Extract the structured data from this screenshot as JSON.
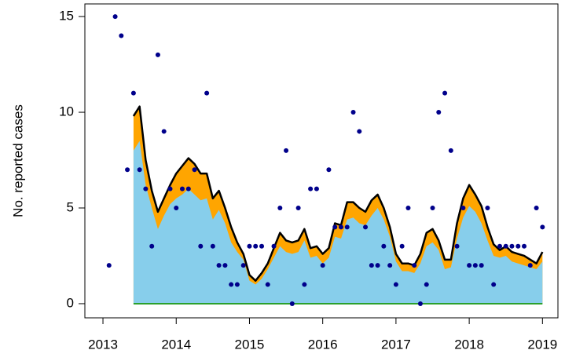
{
  "chart_data": {
    "type": "line",
    "ylabel": "No. reported cases",
    "xlim": [
      2012.753,
      2019.211
    ],
    "ylim": [
      -0.74,
      15.66
    ],
    "xticks": [
      2013,
      2014,
      2015,
      2016,
      2017,
      2018,
      2019
    ],
    "yticks": [
      0,
      5,
      10,
      15
    ],
    "baseline": {
      "value": 0,
      "color": "#2ca02c"
    },
    "series": [
      {
        "type": "area",
        "color": "#ffa500",
        "stroke": "#000000",
        "x": [
          2013.417,
          2013.5,
          2013.583,
          2013.667,
          2013.75,
          2013.833,
          2013.917,
          2014,
          2014.083,
          2014.167,
          2014.25,
          2014.333,
          2014.417,
          2014.5,
          2014.583,
          2014.667,
          2014.75,
          2014.833,
          2014.917,
          2015,
          2015.083,
          2015.167,
          2015.25,
          2015.333,
          2015.417,
          2015.5,
          2015.583,
          2015.667,
          2015.75,
          2015.833,
          2015.917,
          2016,
          2016.083,
          2016.167,
          2016.25,
          2016.333,
          2016.417,
          2016.5,
          2016.583,
          2016.667,
          2016.75,
          2016.833,
          2016.917,
          2017,
          2017.083,
          2017.167,
          2017.25,
          2017.333,
          2017.417,
          2017.5,
          2017.583,
          2017.667,
          2017.75,
          2017.833,
          2017.917,
          2018,
          2018.083,
          2018.167,
          2018.25,
          2018.333,
          2018.417,
          2018.5,
          2018.583,
          2018.667,
          2018.75,
          2018.833,
          2018.917,
          2019
        ],
        "values": [
          9.8,
          10.3,
          7.5,
          5.9,
          4.8,
          5.5,
          6.2,
          6.8,
          7.2,
          7.6,
          7.3,
          6.8,
          6.8,
          5.5,
          5.9,
          5.0,
          4.0,
          3.2,
          2.6,
          1.5,
          1.2,
          1.6,
          2.1,
          2.9,
          3.7,
          3.3,
          3.2,
          3.3,
          3.9,
          2.9,
          3.0,
          2.6,
          2.9,
          4.2,
          4.1,
          5.3,
          5.3,
          5.0,
          4.8,
          5.4,
          5.7,
          5.0,
          4.0,
          2.6,
          2.1,
          2.1,
          2.0,
          2.6,
          3.7,
          3.9,
          3.3,
          2.3,
          2.3,
          4.2,
          5.5,
          6.2,
          5.7,
          5.1,
          4.0,
          3.1,
          2.8,
          3.0,
          2.7,
          2.6,
          2.5,
          2.3,
          2.1,
          2.7
        ]
      },
      {
        "type": "area",
        "color": "#87ceeb",
        "x": [
          2013.417,
          2013.5,
          2013.583,
          2013.667,
          2013.75,
          2013.833,
          2013.917,
          2014,
          2014.083,
          2014.167,
          2014.25,
          2014.333,
          2014.417,
          2014.5,
          2014.583,
          2014.667,
          2014.75,
          2014.833,
          2014.917,
          2015,
          2015.083,
          2015.167,
          2015.25,
          2015.333,
          2015.417,
          2015.5,
          2015.583,
          2015.667,
          2015.75,
          2015.833,
          2015.917,
          2016,
          2016.083,
          2016.167,
          2016.25,
          2016.333,
          2016.417,
          2016.5,
          2016.583,
          2016.667,
          2016.75,
          2016.833,
          2016.917,
          2017,
          2017.083,
          2017.167,
          2017.25,
          2017.333,
          2017.417,
          2017.5,
          2017.583,
          2017.667,
          2017.75,
          2017.833,
          2017.917,
          2018,
          2018.083,
          2018.167,
          2018.25,
          2018.333,
          2018.417,
          2018.5,
          2018.583,
          2018.667,
          2018.75,
          2018.833,
          2018.917,
          2019
        ],
        "values": [
          8.0,
          8.5,
          6.2,
          5.0,
          3.9,
          4.6,
          5.2,
          5.5,
          5.7,
          6.0,
          5.7,
          5.4,
          5.5,
          4.4,
          4.9,
          4.2,
          3.2,
          2.7,
          2.3,
          1.2,
          1.0,
          1.3,
          1.8,
          2.4,
          3.0,
          2.7,
          2.6,
          2.7,
          3.3,
          2.4,
          2.5,
          2.1,
          2.4,
          3.5,
          3.4,
          4.4,
          4.5,
          4.2,
          4.1,
          4.6,
          5.0,
          4.4,
          3.5,
          2.2,
          1.7,
          1.7,
          1.6,
          2.1,
          3.0,
          3.2,
          2.8,
          1.8,
          1.9,
          3.4,
          4.5,
          5.1,
          4.8,
          4.2,
          3.3,
          2.5,
          2.4,
          2.5,
          2.2,
          2.1,
          2.0,
          1.9,
          1.8,
          2.2
        ]
      },
      {
        "type": "scatter",
        "color": "#00008b",
        "x": [
          2013.083,
          2013.167,
          2013.25,
          2013.333,
          2013.417,
          2013.5,
          2013.583,
          2013.667,
          2013.75,
          2013.833,
          2013.917,
          2014,
          2014.083,
          2014.167,
          2014.25,
          2014.333,
          2014.417,
          2014.5,
          2014.583,
          2014.667,
          2014.75,
          2014.833,
          2014.917,
          2015,
          2015.083,
          2015.167,
          2015.25,
          2015.333,
          2015.417,
          2015.5,
          2015.583,
          2015.667,
          2015.75,
          2015.833,
          2015.917,
          2016,
          2016.083,
          2016.167,
          2016.25,
          2016.333,
          2016.417,
          2016.5,
          2016.583,
          2016.667,
          2016.75,
          2016.833,
          2016.917,
          2017,
          2017.083,
          2017.167,
          2017.25,
          2017.333,
          2017.417,
          2017.5,
          2017.583,
          2017.667,
          2017.75,
          2017.833,
          2017.917,
          2018,
          2018.083,
          2018.167,
          2018.25,
          2018.333,
          2018.417,
          2018.5,
          2018.583,
          2018.667,
          2018.75,
          2018.833,
          2018.917,
          2019
        ],
        "values": [
          2,
          15,
          14,
          7,
          11,
          7,
          6,
          3,
          13,
          9,
          6,
          5,
          6,
          6,
          7,
          3,
          11,
          3,
          2,
          2,
          1,
          1,
          2,
          3,
          3,
          3,
          1,
          3,
          5,
          8,
          0,
          5,
          1,
          6,
          6,
          2,
          7,
          4,
          4,
          4,
          10,
          9,
          4,
          2,
          2,
          3,
          2,
          1,
          3,
          5,
          2,
          0,
          1,
          5,
          10,
          11,
          8,
          3,
          5,
          2,
          2,
          2,
          5,
          1,
          3,
          3,
          3,
          3,
          3,
          2,
          5,
          4
        ]
      }
    ]
  }
}
